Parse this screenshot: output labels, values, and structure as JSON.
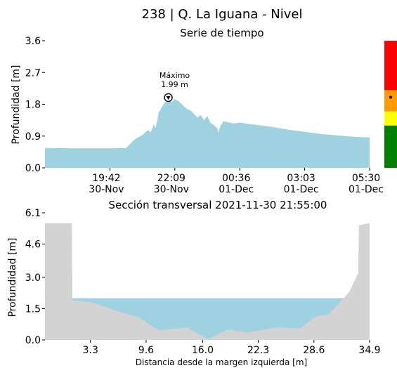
{
  "header": {
    "title": "238 | Q. La Iguana - Nivel"
  },
  "colors": {
    "water": "#9fd2e0",
    "terrain": "#d3d3d3",
    "scale_red": "#ff0000",
    "scale_orange": "#ff9900",
    "scale_yellow": "#ffff00",
    "scale_green": "#008000"
  },
  "chart_data": [
    {
      "type": "area",
      "title": "Serie de tiempo",
      "ylabel": "Profundidad [m]",
      "ylim": [
        0,
        3.6
      ],
      "yticks": [
        "0.0",
        "0.9",
        "1.8",
        "2.7",
        "3.6"
      ],
      "xticks": [
        {
          "line1": "19:42",
          "line2": "30-Nov",
          "t": 0.2
        },
        {
          "line1": "22:09",
          "line2": "30-Nov",
          "t": 0.4
        },
        {
          "line1": "00:36",
          "line2": "01-Dec",
          "t": 0.6
        },
        {
          "line1": "03:03",
          "line2": "01-Dec",
          "t": 0.8
        },
        {
          "line1": "05:30",
          "line2": "01-Dec",
          "t": 1.0
        }
      ],
      "series": [
        {
          "t": [
            0.0,
            0.1,
            0.2,
            0.25,
            0.27,
            0.28,
            0.3,
            0.31,
            0.32,
            0.325,
            0.33,
            0.335,
            0.34,
            0.345,
            0.35,
            0.36,
            0.37,
            0.38,
            0.385,
            0.39,
            0.4,
            0.41,
            0.42,
            0.43,
            0.44,
            0.45,
            0.46,
            0.47,
            0.48,
            0.49,
            0.5,
            0.51,
            0.52,
            0.53,
            0.535,
            0.54,
            0.55,
            0.56,
            0.58,
            0.6,
            0.65,
            0.7,
            0.75,
            0.8,
            0.85,
            0.9,
            0.95,
            1.0
          ],
          "y": [
            0.56,
            0.55,
            0.55,
            0.56,
            0.75,
            0.83,
            0.93,
            1.02,
            1.07,
            1.0,
            1.1,
            1.25,
            1.12,
            1.3,
            1.55,
            1.72,
            1.86,
            1.9,
            1.93,
            1.86,
            1.95,
            1.9,
            1.82,
            1.72,
            1.66,
            1.62,
            1.52,
            1.42,
            1.5,
            1.35,
            1.47,
            1.27,
            1.22,
            1.13,
            1.0,
            1.18,
            1.32,
            1.3,
            1.26,
            1.28,
            1.22,
            1.16,
            1.08,
            1.02,
            0.96,
            0.92,
            0.88,
            0.86
          ]
        }
      ],
      "annotation": {
        "label": "Máximo",
        "value": "1.99 m",
        "t": 0.38,
        "y": 1.99
      },
      "level_scale": {
        "current_level": 2.0,
        "segments": [
          {
            "level": "green",
            "from": 0,
            "to": 1.2
          },
          {
            "level": "yellow",
            "from": 1.2,
            "to": 1.6
          },
          {
            "level": "orange",
            "from": 1.6,
            "to": 2.2
          },
          {
            "level": "red",
            "from": 2.2,
            "to": 3.6
          }
        ]
      }
    },
    {
      "type": "area",
      "title": "Sección transversal 2021-11-30 21:55:00",
      "xlabel": "Distancia desde la margen izquierda [m]",
      "ylabel": "Profundidad [m]",
      "xlim": [
        -1.85,
        34.9
      ],
      "ylim": [
        0,
        6.1
      ],
      "yticks": [
        "0.0",
        "1.5",
        "3.0",
        "4.6",
        "6.1"
      ],
      "xticks": [
        "3.3",
        "9.6",
        "16.0",
        "22.3",
        "28.6",
        "34.9"
      ],
      "xtick_values": [
        3.3,
        9.6,
        16.0,
        22.3,
        28.6,
        34.9
      ],
      "water_level": 2.0,
      "terrain": {
        "x": [
          -1.85,
          1.2,
          1.25,
          3.5,
          6.5,
          8.7,
          11.0,
          14.2,
          16.6,
          18.8,
          21.1,
          24.5,
          27.0,
          28.9,
          30.2,
          32.6,
          33.6,
          33.7,
          35.0
        ],
        "y": [
          5.6,
          5.6,
          1.9,
          1.8,
          1.35,
          1.1,
          0.45,
          0.6,
          0.05,
          0.5,
          0.35,
          0.6,
          0.55,
          1.15,
          1.2,
          2.3,
          3.2,
          5.5,
          5.6
        ]
      }
    }
  ]
}
